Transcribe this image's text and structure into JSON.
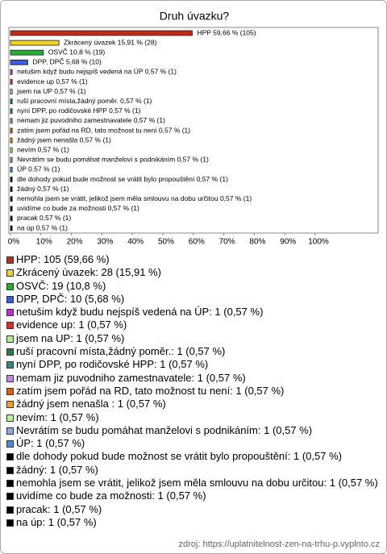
{
  "chart_data": {
    "type": "bar",
    "orientation": "horizontal",
    "title": "Druh úvazku?",
    "values": [
      59.66,
      15.91,
      10.8,
      5.68,
      0.57,
      0.57,
      0.57,
      0.57,
      0.57,
      0.57,
      0.57,
      0.57,
      0.57,
      0.57,
      0.57,
      0.57,
      0.57,
      0.57,
      0.57,
      0.57,
      0.57
    ],
    "value_labels": [
      "HPP 59,66 % (105)",
      "Zkrácený úvazek 15,91 % (28)",
      "OSVČ 10,8 % (19)",
      "DPP, DPČ 5,68 % (10)",
      "netušim když budu nejspíš vedená na ÚP 0,57 % (1)",
      "evidence up 0,57 % (1)",
      "jsem na UP 0,57 % (1)",
      "ruší pracovní místa,žádný poměr. 0,57 % (1)",
      "nyní DPP, po rodičovské HPP 0,57 % (1)",
      "nemam jiz puvodniho zamestnavatele 0,57 % (1)",
      "zatím jsem pořád na RD, tato možnost tu není 0,57 % (1)",
      "žádný jsem nenašla  0,57 % (1)",
      "nevím 0,57 % (1)",
      "Nevrátím se budu pomáhat manželovi s podnikáním 0,57 % (1)",
      "ÚP 0,57 % (1)",
      "dle dohody pokud bude možnost se vrátit bylo propouštění 0,57 % (1)",
      "žádný 0,57 % (1)",
      "nemohla jsem se vrátit, jelikož jsem měla smlouvu na dobu určitou 0,57 % (1)",
      "uvidíme co bude za možnosti 0,57 % (1)",
      "pracak 0,57 % (1)",
      "na úp 0,57 % (1)"
    ],
    "legend_labels": [
      "HPP: 105 (59,66 %)",
      "Zkrácený úvazek: 28 (15,91 %)",
      "OSVČ: 19 (10,8 %)",
      "DPP, DPČ: 10 (5,68 %)",
      "netušim když budu nejspíš vedená na ÚP: 1 (0,57 %)",
      "evidence up: 1 (0,57 %)",
      "jsem na UP: 1 (0,57 %)",
      "ruší pracovní místa,žádný poměr.: 1 (0,57 %)",
      "nyní DPP, po rodičovské HPP: 1 (0,57 %)",
      "nemam jiz puvodniho zamestnavatele: 1 (0,57 %)",
      "zatím jsem pořád na RD, tato možnost tu není: 1 (0,57 %)",
      "žádný jsem nenašla : 1 (0,57 %)",
      "nevím: 1 (0,57 %)",
      "Nevrátím se budu pomáhat manželovi s podnikáním: 1 (0,57 %)",
      "ÚP: 1 (0,57 %)",
      "dle dohody pokud bude možnost se vrátit bylo propouštění: 1 (0,57 %)",
      "žádný: 1 (0,57 %)",
      "nemohla jsem se vrátit, jelikož jsem měla smlouvu na dobu určitou: 1 (0,57 %)",
      "uvidíme co bude za možnosti: 1 (0,57 %)",
      "pracak: 1 (0,57 %)",
      "na úp: 1 (0,57 %)"
    ],
    "colors": [
      "#c02818",
      "#f0d020",
      "#20b030",
      "#3a5ce0",
      "#c030c8",
      "#e02828",
      "#a8f088",
      "#208048",
      "#308888",
      "#c088e0",
      "#e06010",
      "#f0a028",
      "#b0f890",
      "#88a8e8",
      "#4888e8",
      "#000000",
      "#000000",
      "#000000",
      "#000000",
      "#000000",
      "#000000"
    ],
    "xlim": [
      0,
      120
    ],
    "xticks": [
      {
        "value": 0,
        "label": "0%"
      },
      {
        "value": 10,
        "label": "10%"
      },
      {
        "value": 20,
        "label": "20%"
      },
      {
        "value": 30,
        "label": "30%"
      },
      {
        "value": 40,
        "label": "40%"
      },
      {
        "value": 50,
        "label": "50%"
      },
      {
        "value": 60,
        "label": "60%"
      },
      {
        "value": 70,
        "label": "70%"
      },
      {
        "value": 80,
        "label": "80%"
      },
      {
        "value": 90,
        "label": "90%"
      },
      {
        "value": 100,
        "label": "100%"
      }
    ],
    "source": "zdroj: https://uplatnitelnost-zen-na-trhu-p.vyplnto.cz"
  }
}
